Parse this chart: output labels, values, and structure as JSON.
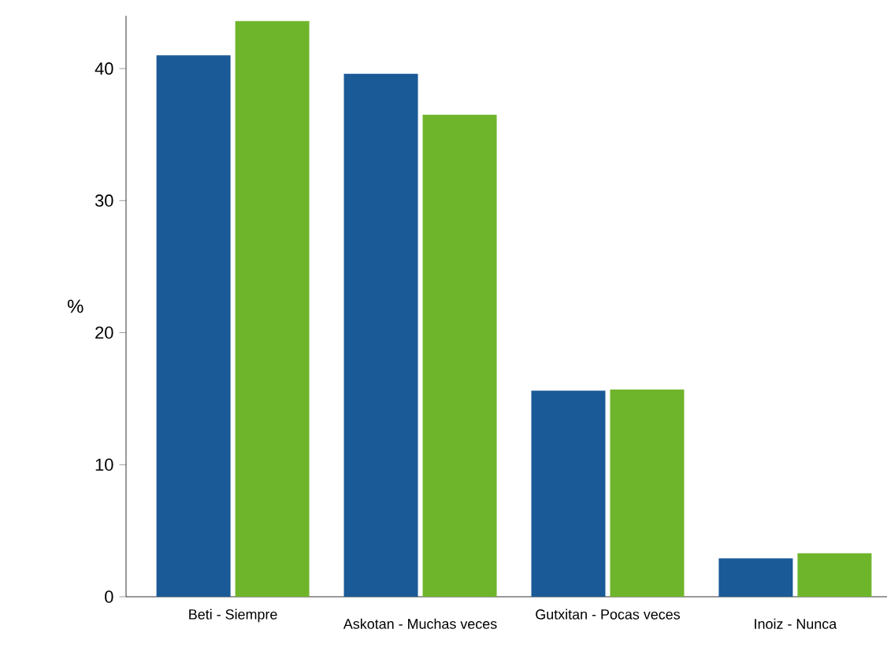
{
  "chart_data": {
    "type": "bar",
    "ylabel": "%",
    "categories": [
      "Beti - Siempre",
      "Askotan - Muchas veces",
      "Gutxitan - Pocas veces",
      "Inoiz - Nunca"
    ],
    "series": [
      {
        "color": "#1a5a96",
        "values": [
          41.0,
          39.6,
          15.6,
          2.9
        ]
      },
      {
        "color": "#6fb52c",
        "values": [
          43.6,
          36.5,
          15.7,
          3.3
        ]
      }
    ],
    "ylim": [
      0,
      44
    ],
    "yticks": [
      0,
      10,
      20,
      30,
      40
    ],
    "grid": false
  }
}
